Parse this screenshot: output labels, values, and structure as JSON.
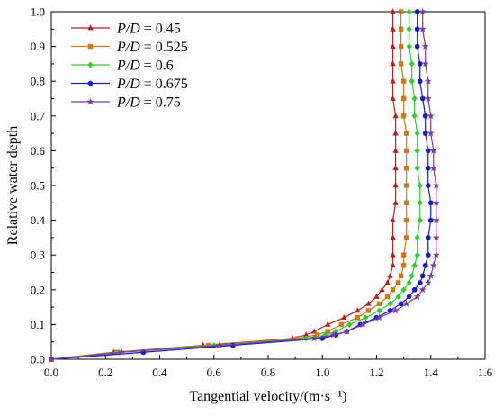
{
  "chart_data": {
    "type": "line",
    "title": "",
    "xlabel": "Tangential velocity/(m·s⁻¹)",
    "ylabel": "Relative water depth",
    "xlim": [
      0.0,
      1.6
    ],
    "ylim": [
      0.0,
      1.0
    ],
    "xticks": [
      "0.0",
      "0.2",
      "0.4",
      "0.6",
      "0.8",
      "1.0",
      "1.2",
      "1.4",
      "1.6"
    ],
    "yticks": [
      "0.0",
      "0.1",
      "0.2",
      "0.3",
      "0.4",
      "0.5",
      "0.6",
      "0.7",
      "0.8",
      "0.9",
      "1.0"
    ],
    "grid": false,
    "legend_position": "top-left",
    "series": [
      {
        "name": "P/D = 0.45",
        "legend_var": "P/D",
        "legend_value": " = 0.45",
        "color": "#b22222",
        "marker": "triangle",
        "points": [
          [
            0.0,
            0.0
          ],
          [
            0.23,
            0.02
          ],
          [
            0.56,
            0.04
          ],
          [
            0.89,
            0.06
          ],
          [
            0.94,
            0.07
          ],
          [
            0.97,
            0.08
          ],
          [
            1.02,
            0.1
          ],
          [
            1.08,
            0.12
          ],
          [
            1.13,
            0.14
          ],
          [
            1.17,
            0.16
          ],
          [
            1.2,
            0.18
          ],
          [
            1.22,
            0.2
          ],
          [
            1.24,
            0.22
          ],
          [
            1.25,
            0.24
          ],
          [
            1.26,
            0.27
          ],
          [
            1.26,
            0.3
          ],
          [
            1.26,
            0.35
          ],
          [
            1.26,
            0.4
          ],
          [
            1.27,
            0.45
          ],
          [
            1.27,
            0.5
          ],
          [
            1.27,
            0.55
          ],
          [
            1.27,
            0.6
          ],
          [
            1.27,
            0.65
          ],
          [
            1.27,
            0.7
          ],
          [
            1.26,
            0.75
          ],
          [
            1.26,
            0.8
          ],
          [
            1.26,
            0.85
          ],
          [
            1.26,
            0.9
          ],
          [
            1.26,
            0.95
          ],
          [
            1.26,
            1.0
          ]
        ]
      },
      {
        "name": "P/D = 0.525",
        "legend_var": "P/D",
        "legend_value": " = 0.525",
        "color": "#cc7a1a",
        "marker": "square",
        "points": [
          [
            0.0,
            0.0
          ],
          [
            0.24,
            0.02
          ],
          [
            0.58,
            0.04
          ],
          [
            0.91,
            0.06
          ],
          [
            0.98,
            0.07
          ],
          [
            1.02,
            0.08
          ],
          [
            1.07,
            0.1
          ],
          [
            1.13,
            0.12
          ],
          [
            1.17,
            0.14
          ],
          [
            1.21,
            0.16
          ],
          [
            1.24,
            0.18
          ],
          [
            1.26,
            0.2
          ],
          [
            1.28,
            0.22
          ],
          [
            1.29,
            0.24
          ],
          [
            1.3,
            0.27
          ],
          [
            1.3,
            0.3
          ],
          [
            1.31,
            0.35
          ],
          [
            1.31,
            0.4
          ],
          [
            1.31,
            0.45
          ],
          [
            1.31,
            0.5
          ],
          [
            1.31,
            0.55
          ],
          [
            1.31,
            0.6
          ],
          [
            1.31,
            0.65
          ],
          [
            1.3,
            0.7
          ],
          [
            1.3,
            0.75
          ],
          [
            1.3,
            0.8
          ],
          [
            1.29,
            0.85
          ],
          [
            1.29,
            0.9
          ],
          [
            1.29,
            0.95
          ],
          [
            1.29,
            1.0
          ]
        ]
      },
      {
        "name": "P/D = 0.6",
        "legend_var": "P/D",
        "legend_value": " = 0.6",
        "color": "#33cc33",
        "marker": "diamond",
        "points": [
          [
            0.0,
            0.0
          ],
          [
            0.25,
            0.02
          ],
          [
            0.6,
            0.04
          ],
          [
            0.94,
            0.06
          ],
          [
            1.01,
            0.07
          ],
          [
            1.05,
            0.08
          ],
          [
            1.1,
            0.1
          ],
          [
            1.16,
            0.12
          ],
          [
            1.21,
            0.14
          ],
          [
            1.25,
            0.16
          ],
          [
            1.28,
            0.18
          ],
          [
            1.3,
            0.2
          ],
          [
            1.32,
            0.22
          ],
          [
            1.33,
            0.24
          ],
          [
            1.34,
            0.27
          ],
          [
            1.35,
            0.3
          ],
          [
            1.35,
            0.35
          ],
          [
            1.36,
            0.4
          ],
          [
            1.36,
            0.45
          ],
          [
            1.36,
            0.5
          ],
          [
            1.35,
            0.55
          ],
          [
            1.35,
            0.6
          ],
          [
            1.35,
            0.65
          ],
          [
            1.34,
            0.7
          ],
          [
            1.34,
            0.75
          ],
          [
            1.33,
            0.8
          ],
          [
            1.33,
            0.85
          ],
          [
            1.32,
            0.9
          ],
          [
            1.32,
            0.95
          ],
          [
            1.32,
            1.0
          ]
        ]
      },
      {
        "name": "P/D = 0.675",
        "legend_var": "P/D",
        "legend_value": " = 0.675",
        "color": "#1a1acc",
        "marker": "circle",
        "points": [
          [
            0.0,
            0.0
          ],
          [
            0.34,
            0.02
          ],
          [
            0.67,
            0.04
          ],
          [
            1.0,
            0.06
          ],
          [
            1.05,
            0.07
          ],
          [
            1.09,
            0.08
          ],
          [
            1.14,
            0.1
          ],
          [
            1.2,
            0.12
          ],
          [
            1.25,
            0.14
          ],
          [
            1.29,
            0.16
          ],
          [
            1.32,
            0.18
          ],
          [
            1.34,
            0.2
          ],
          [
            1.36,
            0.22
          ],
          [
            1.37,
            0.24
          ],
          [
            1.38,
            0.27
          ],
          [
            1.39,
            0.3
          ],
          [
            1.39,
            0.35
          ],
          [
            1.4,
            0.4
          ],
          [
            1.4,
            0.45
          ],
          [
            1.39,
            0.5
          ],
          [
            1.39,
            0.55
          ],
          [
            1.39,
            0.6
          ],
          [
            1.38,
            0.65
          ],
          [
            1.38,
            0.7
          ],
          [
            1.37,
            0.75
          ],
          [
            1.36,
            0.8
          ],
          [
            1.36,
            0.85
          ],
          [
            1.35,
            0.9
          ],
          [
            1.35,
            0.95
          ],
          [
            1.35,
            1.0
          ]
        ]
      },
      {
        "name": "P/D = 0.75",
        "legend_var": "P/D",
        "legend_value": " = 0.75",
        "color": "#7a3d99",
        "marker": "star",
        "points": [
          [
            0.0,
            0.0
          ],
          [
            0.26,
            0.02
          ],
          [
            0.62,
            0.04
          ],
          [
            0.97,
            0.06
          ],
          [
            1.04,
            0.07
          ],
          [
            1.09,
            0.08
          ],
          [
            1.15,
            0.1
          ],
          [
            1.21,
            0.12
          ],
          [
            1.27,
            0.14
          ],
          [
            1.31,
            0.16
          ],
          [
            1.35,
            0.18
          ],
          [
            1.37,
            0.2
          ],
          [
            1.39,
            0.22
          ],
          [
            1.4,
            0.24
          ],
          [
            1.41,
            0.27
          ],
          [
            1.42,
            0.3
          ],
          [
            1.42,
            0.35
          ],
          [
            1.42,
            0.4
          ],
          [
            1.42,
            0.45
          ],
          [
            1.42,
            0.5
          ],
          [
            1.41,
            0.55
          ],
          [
            1.41,
            0.6
          ],
          [
            1.4,
            0.65
          ],
          [
            1.4,
            0.7
          ],
          [
            1.39,
            0.75
          ],
          [
            1.39,
            0.8
          ],
          [
            1.38,
            0.85
          ],
          [
            1.38,
            0.9
          ],
          [
            1.37,
            0.95
          ],
          [
            1.37,
            1.0
          ]
        ]
      }
    ]
  }
}
